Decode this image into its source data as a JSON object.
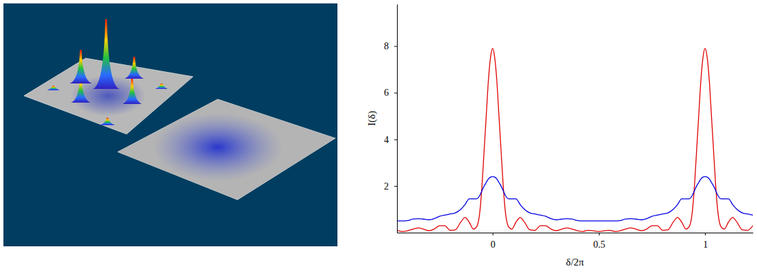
{
  "chart_data": {
    "type": "line",
    "x_label": "δ/2π",
    "y_label": "I(δ)",
    "xlim": [
      -0.45,
      1.225
    ],
    "ylim": [
      0,
      9.8
    ],
    "xticks": [
      0,
      0.5,
      1
    ],
    "yticks": [
      2,
      4,
      6,
      8
    ],
    "x": [
      -0.45,
      -0.425,
      -0.4,
      -0.375,
      -0.35,
      -0.325,
      -0.3,
      -0.275,
      -0.25,
      -0.225,
      -0.2,
      -0.175,
      -0.15,
      -0.13,
      -0.11,
      -0.09,
      -0.075,
      -0.06,
      -0.05,
      -0.04,
      -0.03,
      -0.02,
      -0.01,
      0,
      0.01,
      0.02,
      0.03,
      0.04,
      0.05,
      0.06,
      0.075,
      0.09,
      0.11,
      0.13,
      0.15,
      0.175,
      0.2,
      0.225,
      0.25,
      0.275,
      0.3,
      0.325,
      0.35,
      0.375,
      0.4,
      0.425,
      0.45,
      0.5,
      0.55,
      0.575,
      0.6,
      0.625,
      0.65,
      0.675,
      0.7,
      0.725,
      0.75,
      0.775,
      0.8,
      0.825,
      0.85,
      0.87,
      0.89,
      0.91,
      0.925,
      0.94,
      0.95,
      0.96,
      0.97,
      0.98,
      0.99,
      1,
      1.01,
      1.02,
      1.03,
      1.04,
      1.05,
      1.06,
      1.075,
      1.09,
      1.11,
      1.13,
      1.15,
      1.175,
      1.2,
      1.225
    ],
    "series": [
      {
        "color": "#e00000",
        "values": [
          0.1,
          0.05,
          0.08,
          0.15,
          0.2,
          0.15,
          0.08,
          0.15,
          0.3,
          0.3,
          0.1,
          0.12,
          0.45,
          0.65,
          0.45,
          0.15,
          0.25,
          0.9,
          2.0,
          3.5,
          5.0,
          6.5,
          7.5,
          7.9,
          7.5,
          6.5,
          5.0,
          3.5,
          2.0,
          0.9,
          0.25,
          0.15,
          0.45,
          0.65,
          0.45,
          0.12,
          0.1,
          0.3,
          0.3,
          0.15,
          0.08,
          0.15,
          0.2,
          0.15,
          0.08,
          0.05,
          0.1,
          0.05,
          0.1,
          0.05,
          0.08,
          0.15,
          0.2,
          0.15,
          0.08,
          0.15,
          0.3,
          0.3,
          0.1,
          0.12,
          0.45,
          0.65,
          0.45,
          0.15,
          0.25,
          0.9,
          2.0,
          3.5,
          5.0,
          6.5,
          7.5,
          7.9,
          7.5,
          6.5,
          5.0,
          3.5,
          2.0,
          0.9,
          0.25,
          0.15,
          0.45,
          0.65,
          0.45,
          0.12,
          0.1,
          0.3
        ]
      },
      {
        "color": "#0000e0",
        "values": [
          0.5,
          0.5,
          0.52,
          0.58,
          0.6,
          0.58,
          0.55,
          0.6,
          0.7,
          0.75,
          0.8,
          0.85,
          1.0,
          1.2,
          1.45,
          1.45,
          1.45,
          1.6,
          1.8,
          2.0,
          2.15,
          2.3,
          2.38,
          2.4,
          2.38,
          2.3,
          2.15,
          2.0,
          1.8,
          1.6,
          1.45,
          1.45,
          1.45,
          1.2,
          1.0,
          0.85,
          0.8,
          0.75,
          0.7,
          0.6,
          0.55,
          0.58,
          0.6,
          0.58,
          0.52,
          0.5,
          0.5,
          0.5,
          0.5,
          0.5,
          0.52,
          0.58,
          0.6,
          0.58,
          0.55,
          0.6,
          0.7,
          0.75,
          0.8,
          0.85,
          1.0,
          1.2,
          1.45,
          1.45,
          1.45,
          1.6,
          1.8,
          2.0,
          2.15,
          2.3,
          2.38,
          2.4,
          2.38,
          2.3,
          2.15,
          2.0,
          1.8,
          1.6,
          1.45,
          1.45,
          1.45,
          1.2,
          1.0,
          0.85,
          0.8,
          0.75
        ]
      }
    ]
  }
}
